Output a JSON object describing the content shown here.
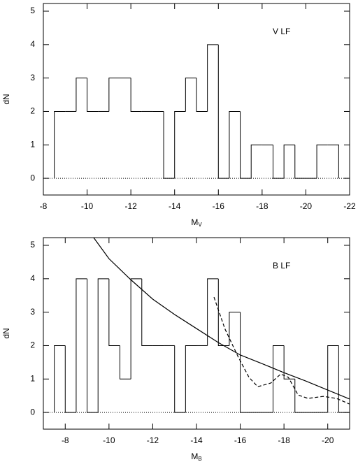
{
  "chart_data": [
    {
      "type": "histogram",
      "annotation": "V LF",
      "ylabel": "dN",
      "xlabel": "M",
      "xlabel_sub": "V",
      "xlim": [
        -8,
        -22
      ],
      "xticks": [
        -8,
        -10,
        -12,
        -14,
        -16,
        -18,
        -20,
        -22
      ],
      "ylim": [
        -0.5,
        5.23
      ],
      "yticks": [
        0,
        1,
        2,
        3,
        4,
        5
      ],
      "zero_line": "dotted",
      "color": "#000000",
      "bins": [
        -8.5,
        -9,
        -9.5,
        -10,
        -10.5,
        -11,
        -11.5,
        -12,
        -12.5,
        -13,
        -13.5,
        -14,
        -14.5,
        -15,
        -15.5,
        -16,
        -16.5,
        -17,
        -17.5,
        -18,
        -18.5,
        -19,
        -19.5,
        -20,
        -20.5,
        -21,
        -21.5
      ],
      "values": [
        2,
        2,
        3,
        2,
        2,
        3,
        3,
        2,
        2,
        2,
        0,
        2,
        3,
        2,
        4,
        0,
        2,
        0,
        1,
        1,
        0,
        1,
        0,
        0,
        1,
        1
      ]
    },
    {
      "type": "histogram",
      "annotation": "B LF",
      "ylabel": "dN",
      "xlabel": "M",
      "xlabel_sub": "B",
      "xlim": [
        -7,
        -21
      ],
      "xticks": [
        -8,
        -10,
        -12,
        -14,
        -16,
        -18,
        -20
      ],
      "ylim": [
        -0.5,
        5.23
      ],
      "yticks": [
        0,
        1,
        2,
        3,
        4,
        5
      ],
      "zero_line": "dotted",
      "color": "#000000",
      "bins": [
        -7.5,
        -8,
        -8.5,
        -9,
        -9.5,
        -10,
        -10.5,
        -11,
        -11.5,
        -12,
        -12.5,
        -13,
        -13.5,
        -14,
        -14.5,
        -15,
        -15.5,
        -16,
        -16.5,
        -17,
        -17.5,
        -18,
        -18.5,
        -19,
        -19.5,
        -20,
        -20.5,
        -21
      ],
      "values": [
        2,
        0,
        4,
        0,
        4,
        2,
        1,
        4,
        2,
        2,
        2,
        0,
        2,
        2,
        4,
        2,
        3,
        0,
        0,
        0,
        2,
        1,
        0,
        0,
        0,
        2,
        0
      ],
      "lines": [
        {
          "style": "solid",
          "x": [
            -9.3,
            -10,
            -11,
            -12,
            -13,
            -14,
            -15,
            -16,
            -17,
            -18,
            -19,
            -20,
            -21
          ],
          "values": [
            5.23,
            4.6,
            3.97,
            3.39,
            2.93,
            2.51,
            2.09,
            1.72,
            1.46,
            1.19,
            0.94,
            0.67,
            0.4
          ]
        },
        {
          "style": "dashed",
          "x": [
            -14.8,
            -15.3,
            -15.9,
            -16.4,
            -16.8,
            -17.4,
            -17.85,
            -18.2,
            -18.65,
            -19.1,
            -19.8,
            -20.4,
            -21
          ],
          "values": [
            3.45,
            2.5,
            1.67,
            1.05,
            0.77,
            0.88,
            1.15,
            1.05,
            0.52,
            0.42,
            0.48,
            0.42,
            0.25
          ]
        }
      ]
    }
  ]
}
